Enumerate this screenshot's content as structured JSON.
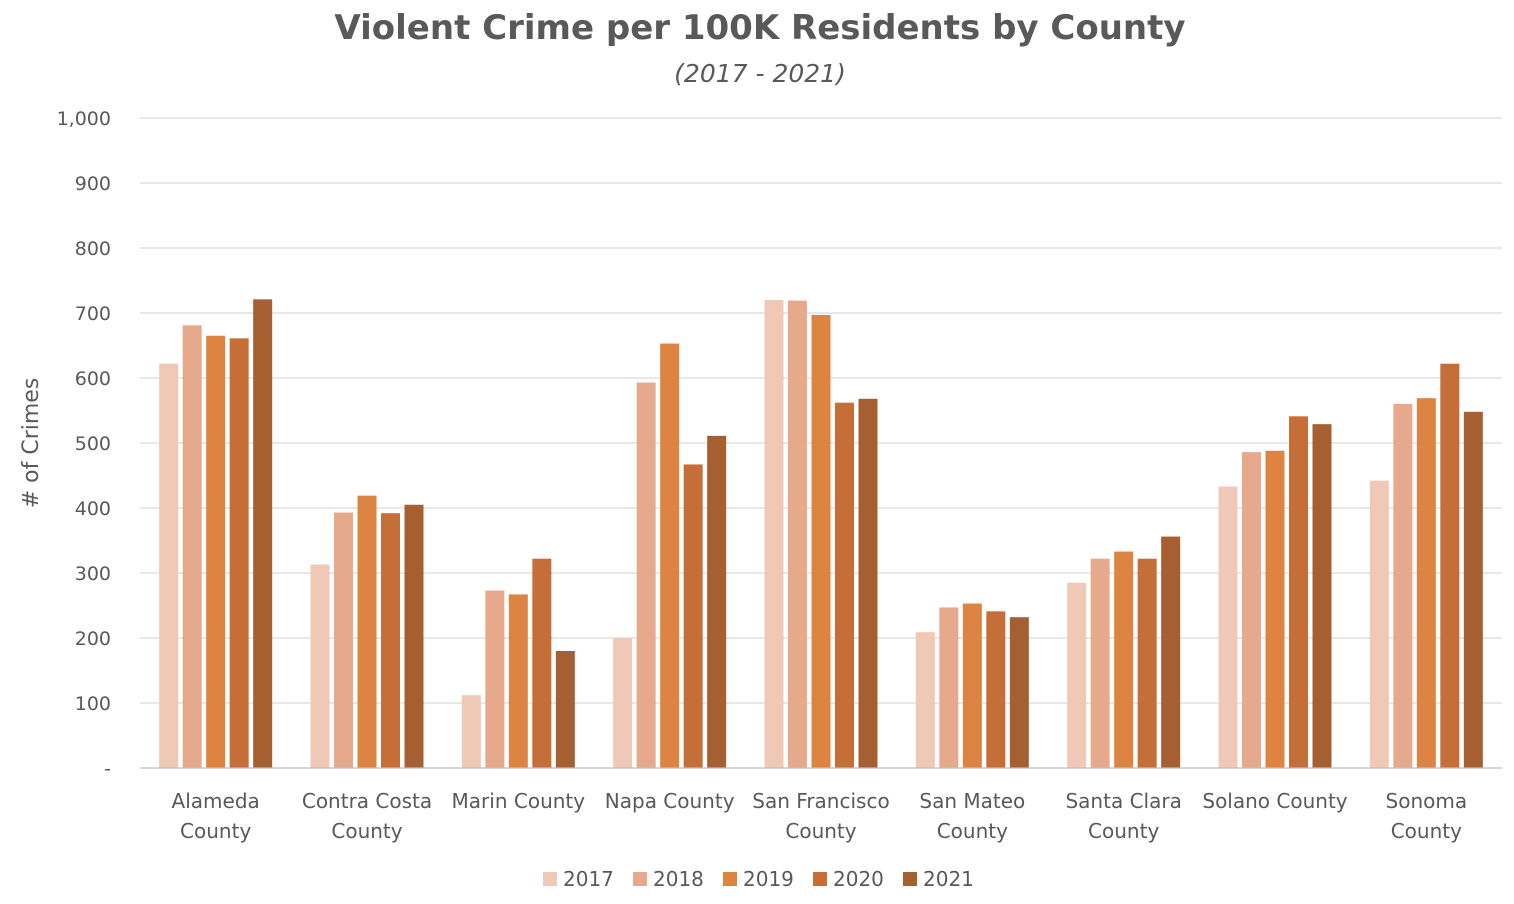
{
  "chart_data": {
    "type": "bar",
    "title": "Violent Crime per 100K Residents by County",
    "subtitle": "(2017 - 2021)",
    "xlabel": "",
    "ylabel": "# of Crimes",
    "ylim": [
      0,
      1000
    ],
    "yticks": [
      {
        "value": 0,
        "label": "-"
      },
      {
        "value": 100,
        "label": "100"
      },
      {
        "value": 200,
        "label": "200"
      },
      {
        "value": 300,
        "label": "300"
      },
      {
        "value": 400,
        "label": "400"
      },
      {
        "value": 500,
        "label": "500"
      },
      {
        "value": 600,
        "label": "600"
      },
      {
        "value": 700,
        "label": "700"
      },
      {
        "value": 800,
        "label": "800"
      },
      {
        "value": 900,
        "label": "900"
      },
      {
        "value": 1000,
        "label": "1,000"
      }
    ],
    "grid": true,
    "legend_position": "bottom",
    "categories": [
      [
        "Alameda",
        "County"
      ],
      [
        "Contra Costa",
        "County"
      ],
      [
        "Marin County"
      ],
      [
        "Napa County"
      ],
      [
        "San Francisco",
        "County"
      ],
      [
        "San Mateo",
        "County"
      ],
      [
        "Santa Clara",
        "County"
      ],
      [
        "Solano County"
      ],
      [
        "Sonoma",
        "County"
      ]
    ],
    "series": [
      {
        "name": "2017",
        "color": "#F0C8B6",
        "values": [
          622,
          313,
          112,
          200,
          720,
          209,
          285,
          433,
          442
        ]
      },
      {
        "name": "2018",
        "color": "#E6A98B",
        "values": [
          681,
          393,
          273,
          593,
          719,
          247,
          322,
          486,
          560
        ]
      },
      {
        "name": "2019",
        "color": "#DE8443",
        "values": [
          665,
          419,
          267,
          653,
          697,
          253,
          333,
          488,
          569
        ]
      },
      {
        "name": "2020",
        "color": "#C56E37",
        "values": [
          661,
          392,
          322,
          467,
          562,
          241,
          322,
          541,
          622
        ]
      },
      {
        "name": "2021",
        "color": "#A65F30",
        "values": [
          721,
          405,
          180,
          511,
          568,
          232,
          356,
          529,
          548
        ]
      }
    ]
  }
}
